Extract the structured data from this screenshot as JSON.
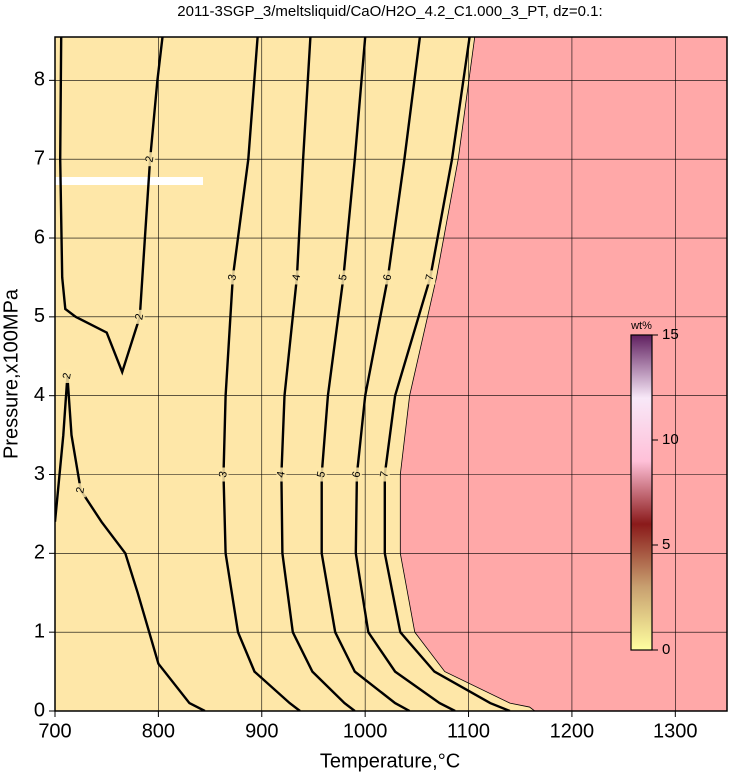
{
  "chart_data": {
    "type": "contour",
    "title": "2011-3SGP_3/meltsliquid/CaO/H2O_4.2_C1.000_3_PT, dz=0.1:",
    "x_label": "Temperature,°C",
    "y_label": "Pressure,x100MPa",
    "xlim": [
      700,
      1350
    ],
    "ylim": [
      0,
      8.55
    ],
    "xticks": [
      700,
      800,
      900,
      1000,
      1100,
      1200,
      1300
    ],
    "yticks": [
      0,
      1,
      2,
      3,
      4,
      5,
      6,
      7,
      8
    ],
    "grid": true,
    "background": "#fee7a8",
    "line_color": "#000000",
    "melt_boundary": {
      "color": "#ffa8a8",
      "x": [
        1106,
        1090,
        1069,
        1043,
        1034,
        1034,
        1048,
        1077,
        1140,
        1159,
        1164
      ],
      "y": [
        8.55,
        7,
        5.5,
        4,
        3,
        2,
        1,
        0.5,
        0.1,
        0.05,
        0
      ]
    },
    "contours": [
      {
        "level": 2,
        "x": [
          804,
          799,
          792,
          787,
          782,
          765,
          750,
          720,
          710,
          707,
          705,
          706
        ],
        "y": [
          8.55,
          8,
          7,
          6,
          5,
          4.3,
          4.8,
          5.0,
          5.1,
          5.5,
          7,
          8.55
        ]
      },
      {
        "level": 2,
        "x": [
          700,
          708,
          712,
          716,
          725,
          745,
          768,
          780,
          800,
          830,
          845
        ],
        "y": [
          2.4,
          3.5,
          4.25,
          3.5,
          2.8,
          2.4,
          2.0,
          1.5,
          0.6,
          0.1,
          0
        ]
      },
      {
        "level": 3,
        "x": [
          896,
          887,
          872,
          865,
          863,
          865,
          877,
          893,
          927,
          937
        ],
        "y": [
          8.55,
          7,
          5.5,
          4,
          3,
          2,
          1,
          0.5,
          0.1,
          0
        ]
      },
      {
        "level": 4,
        "x": [
          947,
          940,
          934,
          922,
          919,
          920,
          930,
          949,
          980,
          990
        ],
        "y": [
          8.55,
          7,
          5.5,
          4,
          3,
          2,
          1,
          0.5,
          0.1,
          0
        ]
      },
      {
        "level": 5,
        "x": [
          1000,
          990,
          979,
          964,
          958,
          958,
          971,
          990,
          1029,
          1043
        ],
        "y": [
          8.55,
          7,
          5.5,
          4,
          3,
          2,
          1,
          0.5,
          0.1,
          0
        ]
      },
      {
        "level": 6,
        "x": [
          1053,
          1038,
          1022,
          1000,
          992,
          991,
          1003,
          1029,
          1072,
          1087
        ],
        "y": [
          8.55,
          7,
          5.5,
          4,
          3,
          2,
          1,
          0.5,
          0.1,
          0
        ]
      },
      {
        "level": 7,
        "x": [
          1101,
          1084,
          1063,
          1029,
          1019,
          1019,
          1034,
          1067,
          1121,
          1140
        ],
        "y": [
          8.55,
          7,
          5.5,
          4,
          3,
          2,
          1,
          0.5,
          0.1,
          0
        ]
      }
    ],
    "colorbar": {
      "label": "wt%",
      "lim": [
        0,
        15
      ],
      "ticks": [
        0,
        5,
        10,
        15
      ],
      "colors": [
        "#ffffa0",
        "#c8a070",
        "#8a1a1a",
        "#ffc0d8",
        "#f8e8f8",
        "#602060"
      ]
    }
  }
}
